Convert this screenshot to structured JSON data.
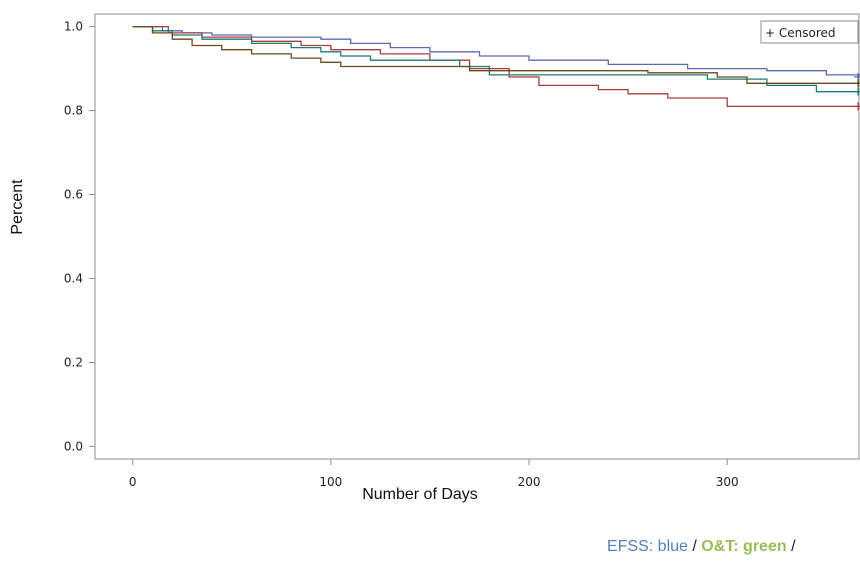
{
  "chart_data": {
    "type": "line",
    "step": true,
    "xlabel": "Number of Days",
    "ylabel": "Percent",
    "xlim": [
      -19,
      367
    ],
    "ylim": [
      -0.03,
      1.03
    ],
    "xticks": [
      0,
      100,
      200,
      300
    ],
    "xtick_labels": [
      "0",
      "100",
      "200",
      "300"
    ],
    "yticks": [
      0.0,
      0.2,
      0.4,
      0.6,
      0.8,
      1.0
    ],
    "ytick_labels": [
      "0.0",
      "0.2",
      "0.4",
      "0.6",
      "0.8",
      "1.0"
    ],
    "legend": {
      "label": "+ Censored",
      "placement": "top-right"
    },
    "series": [
      {
        "color": "#5a6bb0",
        "x": [
          0,
          15,
          25,
          40,
          60,
          95,
          110,
          130,
          150,
          175,
          200,
          240,
          280,
          320,
          350,
          367
        ],
        "y": [
          1.0,
          0.99,
          0.985,
          0.98,
          0.975,
          0.97,
          0.96,
          0.95,
          0.94,
          0.93,
          0.92,
          0.91,
          0.9,
          0.895,
          0.885,
          0.88
        ],
        "censored": [
          {
            "x": 366,
            "y": 0.88
          }
        ]
      },
      {
        "color": "#a83c3c",
        "x": [
          0,
          18,
          35,
          60,
          85,
          100,
          125,
          150,
          170,
          190,
          205,
          235,
          250,
          270,
          300,
          367
        ],
        "y": [
          1.0,
          0.985,
          0.975,
          0.965,
          0.955,
          0.945,
          0.935,
          0.92,
          0.9,
          0.88,
          0.86,
          0.85,
          0.84,
          0.83,
          0.81,
          0.81
        ],
        "censored": [
          {
            "x": 366,
            "y": 0.81
          }
        ]
      },
      {
        "color": "#1e7b72",
        "x": [
          0,
          10,
          20,
          35,
          60,
          80,
          95,
          105,
          120,
          165,
          180,
          290,
          320,
          345,
          367
        ],
        "y": [
          1.0,
          0.99,
          0.98,
          0.97,
          0.96,
          0.95,
          0.94,
          0.93,
          0.92,
          0.905,
          0.885,
          0.875,
          0.86,
          0.845,
          0.845
        ],
        "censored": [
          {
            "x": 366,
            "y": 0.845
          }
        ]
      },
      {
        "color": "#6b4a1e",
        "x": [
          0,
          10,
          20,
          30,
          45,
          60,
          80,
          95,
          105,
          170,
          260,
          295,
          310,
          367
        ],
        "y": [
          1.0,
          0.985,
          0.97,
          0.955,
          0.945,
          0.935,
          0.925,
          0.915,
          0.905,
          0.895,
          0.89,
          0.88,
          0.865,
          0.865
        ],
        "censored": [
          {
            "x": 366,
            "y": 0.865
          }
        ]
      }
    ]
  },
  "caption": {
    "blue_text": "EFSS: blue",
    "sep1": " / ",
    "green_text": "O&T: green",
    "sep2": " /"
  }
}
